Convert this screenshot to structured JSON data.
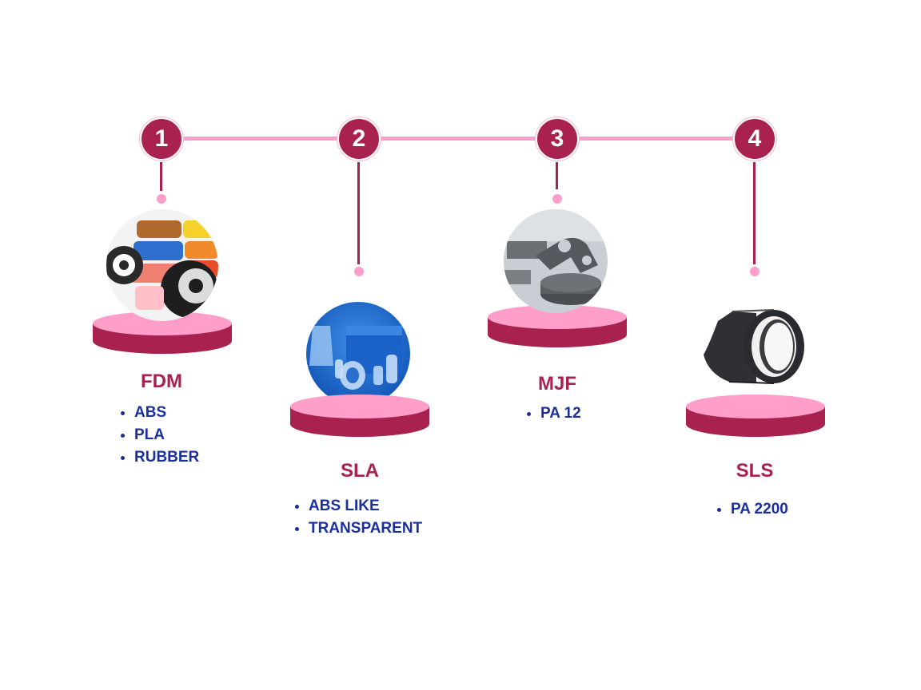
{
  "colors": {
    "accent": "#a8214f",
    "pink": "#ff9fc9",
    "list_text": "#1a2fa0"
  },
  "steps": [
    {
      "number": "1",
      "title": "FDM",
      "materials": [
        "ABS",
        "PLA",
        "RUBBER"
      ],
      "image": "filament-spools"
    },
    {
      "number": "2",
      "title": "SLA",
      "materials": [
        "ABS LIKE",
        "TRANSPARENT"
      ],
      "image": "transparent-resin-parts"
    },
    {
      "number": "3",
      "title": "MJF",
      "materials": [
        "PA 12"
      ],
      "image": "grey-nylon-parts"
    },
    {
      "number": "4",
      "title": "SLS",
      "materials": [
        "PA 2200"
      ],
      "image": "black-nylon-ring"
    }
  ]
}
